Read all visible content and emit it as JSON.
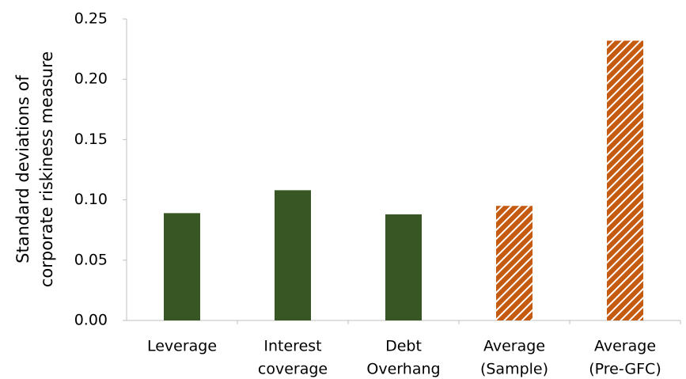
{
  "chart_data": {
    "type": "bar",
    "y_label": [
      "Standard deviations of",
      "corporate riskiness measure"
    ],
    "categories": [
      [
        "Leverage"
      ],
      [
        "Interest",
        "coverage"
      ],
      [
        "Debt",
        "Overhang"
      ],
      [
        "Average",
        "(Sample)"
      ],
      [
        "Average",
        "(Pre-GFC)"
      ]
    ],
    "values": [
      0.089,
      0.108,
      0.088,
      0.095,
      0.232
    ],
    "colors": [
      "#375623",
      "#375623",
      "#375623",
      "#c55a11",
      "#c55a11"
    ],
    "hatched": [
      false,
      false,
      false,
      true,
      true
    ],
    "ylim": [
      0,
      0.25
    ],
    "yticks": [
      {
        "value": 0,
        "label": "0.00"
      },
      {
        "value": 0.05,
        "label": "0.05"
      },
      {
        "value": 0.1,
        "label": "0.10"
      },
      {
        "value": 0.15,
        "label": "0.15"
      },
      {
        "value": 0.2,
        "label": "0.20"
      },
      {
        "value": 0.25,
        "label": "0.25"
      }
    ],
    "grid": false
  }
}
